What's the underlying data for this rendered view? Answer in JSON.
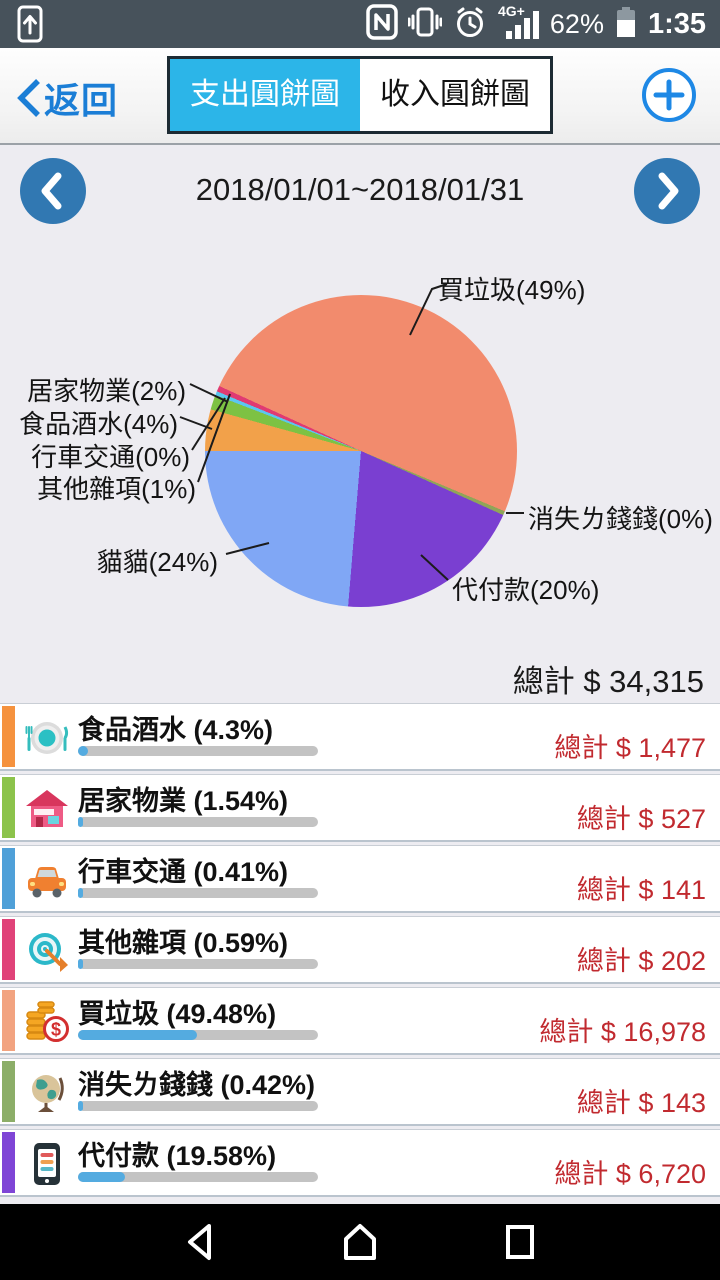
{
  "status_bar": {
    "network": "4G+",
    "battery_percent": "62%",
    "time": "1:35"
  },
  "header": {
    "back_label": "返回",
    "tabs": [
      {
        "label": "支出圓餅圖",
        "active": true
      },
      {
        "label": "收入圓餅圖",
        "active": false
      }
    ]
  },
  "period": {
    "range": "2018/01/01~2018/01/31"
  },
  "summary": {
    "total_label": "總計 $ 34,315"
  },
  "chart_data": {
    "type": "pie",
    "title": "支出圓餅圖",
    "period": "2018/01/01~2018/01/31",
    "start_angle_deg": 270,
    "direction": "clockwise",
    "total": 34315,
    "slices": [
      {
        "name": "食品酒水",
        "label": "食品酒水(4%)",
        "value": 4.3,
        "color": "#F2A14A"
      },
      {
        "name": "居家物業",
        "label": "居家物業(2%)",
        "value": 1.54,
        "color": "#7DC243"
      },
      {
        "name": "行車交通",
        "label": "行車交通(0%)",
        "value": 0.41,
        "color": "#5BC6F0"
      },
      {
        "name": "其他雜項",
        "label": "其他雜項(1%)",
        "value": 0.59,
        "color": "#E03A72"
      },
      {
        "name": "買垃圾",
        "label": "買垃圾(49%)",
        "value": 49.48,
        "color": "#F28B6D"
      },
      {
        "name": "消失ㄌ錢錢",
        "label": "消失ㄌ錢錢(0%)",
        "value": 0.42,
        "color": "#8FA558"
      },
      {
        "name": "代付款",
        "label": "代付款(20%)",
        "value": 19.58,
        "color": "#7A3FD1"
      },
      {
        "name": "貓貓",
        "label": "貓貓(24%)",
        "value": 23.68,
        "color": "#80A7F5"
      }
    ]
  },
  "rows": [
    {
      "icon": "dining-icon",
      "name": "食品酒水 (4.3%)",
      "percent": 4.3,
      "bar_color": "#F5923E",
      "total": "總計 $ 1,477"
    },
    {
      "icon": "house-icon",
      "name": "居家物業 (1.54%)",
      "percent": 1.54,
      "bar_color": "#8CC34B",
      "total": "總計 $ 527"
    },
    {
      "icon": "car-icon",
      "name": "行車交通 (0.41%)",
      "percent": 0.41,
      "bar_color": "#4FA0D8",
      "total": "總計 $ 141"
    },
    {
      "icon": "target-icon",
      "name": "其他雜項 (0.59%)",
      "percent": 0.59,
      "bar_color": "#E04379",
      "total": "總計 $ 202"
    },
    {
      "icon": "coins-icon",
      "name": "買垃圾 (49.48%)",
      "percent": 49.48,
      "bar_color": "#F2A380",
      "total": "總計 $ 16,978"
    },
    {
      "icon": "globe-icon",
      "name": "消失ㄌ錢錢 (0.42%)",
      "percent": 0.42,
      "bar_color": "#8CAE68",
      "total": "總計 $ 143"
    },
    {
      "icon": "phone-icon",
      "name": "代付款 (19.58%)",
      "percent": 19.58,
      "bar_color": "#7F45D6",
      "total": "總計 $ 6,720"
    }
  ]
}
